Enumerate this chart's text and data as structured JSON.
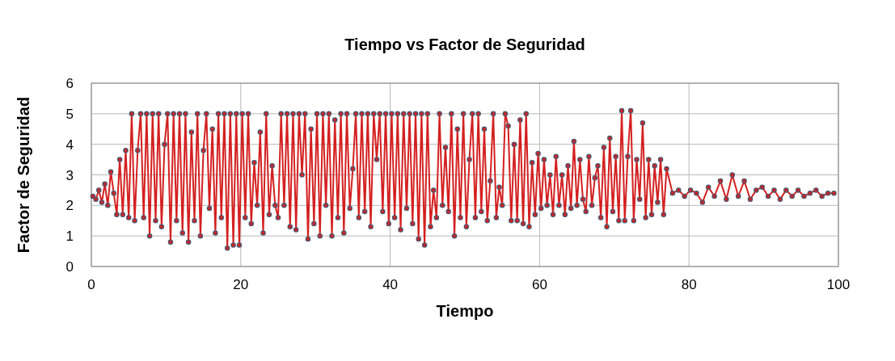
{
  "chart_data": {
    "type": "line",
    "title": "Tiempo vs Factor de Seguridad",
    "xlabel": "Tiempo",
    "ylabel": "Factor de Seguridad",
    "xlim": [
      0,
      100
    ],
    "xticks": [
      0,
      20,
      40,
      60,
      80,
      100
    ],
    "ylim": [
      0,
      6
    ],
    "yticks": [
      0,
      1,
      2,
      3,
      4,
      5,
      6
    ],
    "grid": true,
    "marker": "circle",
    "line_style": "solid",
    "x": [
      0.2,
      0.6,
      1.0,
      1.4,
      1.8,
      2.2,
      2.6,
      3.0,
      3.4,
      3.8,
      4.2,
      4.6,
      5.0,
      5.4,
      5.8,
      6.2,
      6.6,
      7.0,
      7.4,
      7.8,
      8.2,
      8.6,
      9.0,
      9.4,
      9.8,
      10.2,
      10.6,
      11.0,
      11.4,
      11.8,
      12.2,
      12.6,
      13.0,
      13.4,
      13.8,
      14.2,
      14.6,
      15.0,
      15.4,
      15.8,
      16.2,
      16.6,
      17.0,
      17.4,
      17.8,
      18.2,
      18.6,
      19.0,
      19.4,
      19.8,
      20.2,
      20.6,
      21.0,
      21.4,
      21.8,
      22.2,
      22.6,
      23.0,
      23.4,
      23.8,
      24.2,
      24.6,
      25.0,
      25.4,
      25.8,
      26.2,
      26.6,
      27.0,
      27.4,
      27.8,
      28.2,
      28.6,
      29.0,
      29.4,
      29.8,
      30.2,
      30.6,
      31.0,
      31.4,
      31.8,
      32.2,
      32.6,
      33.0,
      33.4,
      33.8,
      34.2,
      34.6,
      35.0,
      35.4,
      35.8,
      36.2,
      36.6,
      37.0,
      37.4,
      37.8,
      38.2,
      38.6,
      39.0,
      39.4,
      39.8,
      40.2,
      40.6,
      41.0,
      41.4,
      41.8,
      42.2,
      42.6,
      43.0,
      43.4,
      43.8,
      44.2,
      44.6,
      45.0,
      45.4,
      45.8,
      46.2,
      46.6,
      47.0,
      47.4,
      47.8,
      48.2,
      48.6,
      49.0,
      49.4,
      49.8,
      50.2,
      50.6,
      51.0,
      51.4,
      51.8,
      52.2,
      52.6,
      53.0,
      53.4,
      53.8,
      54.2,
      54.6,
      55.0,
      55.4,
      55.8,
      56.2,
      56.6,
      57.0,
      57.4,
      57.8,
      58.2,
      58.6,
      59.0,
      59.4,
      59.8,
      60.2,
      60.6,
      61.0,
      61.4,
      61.8,
      62.2,
      62.6,
      63.0,
      63.4,
      63.8,
      64.2,
      64.6,
      65.0,
      65.4,
      65.8,
      66.2,
      66.6,
      67.0,
      67.4,
      67.8,
      68.2,
      68.6,
      69.0,
      69.4,
      69.8,
      70.2,
      70.6,
      71.0,
      71.4,
      71.8,
      72.2,
      72.6,
      73.0,
      73.4,
      73.8,
      74.2,
      74.6,
      75.0,
      75.4,
      75.8,
      76.2,
      76.6,
      77.0,
      77.8,
      78.6,
      79.4,
      80.2,
      81.0,
      81.8,
      82.6,
      83.4,
      84.2,
      85.0,
      85.8,
      86.6,
      87.4,
      88.2,
      89.0,
      89.8,
      90.6,
      91.4,
      92.2,
      93.0,
      93.8,
      94.6,
      95.4,
      96.2,
      97.0,
      97.8,
      98.6,
      99.4
    ],
    "series": [
      {
        "color": "#d42020",
        "values": [
          2.3,
          2.2,
          2.5,
          2.1,
          2.7,
          2.0,
          3.1,
          2.4,
          1.7,
          3.5,
          1.7,
          3.8,
          1.6,
          5.0,
          1.5,
          3.8,
          5.0,
          1.6,
          5.0,
          1.0,
          5.0,
          1.5,
          5.0,
          1.3,
          4.0,
          5.0,
          0.8,
          5.0,
          1.5,
          5.0,
          1.1,
          5.0,
          0.8,
          4.4,
          1.5,
          5.0,
          1.0,
          3.8,
          5.0,
          1.9,
          4.5,
          1.1,
          5.0,
          1.6,
          5.0,
          0.6,
          5.0,
          0.7,
          5.0,
          0.7,
          5.0,
          1.6,
          5.0,
          1.4,
          3.4,
          2.0,
          4.4,
          1.1,
          5.0,
          1.7,
          3.3,
          2.0,
          1.6,
          5.0,
          2.0,
          5.0,
          1.3,
          5.0,
          1.2,
          5.0,
          3.0,
          5.0,
          0.9,
          4.5,
          1.4,
          5.0,
          1.0,
          5.0,
          2.0,
          5.0,
          1.0,
          4.8,
          1.6,
          5.0,
          1.1,
          5.0,
          1.9,
          3.2,
          5.0,
          1.6,
          5.0,
          1.8,
          5.0,
          1.3,
          5.0,
          3.5,
          5.0,
          1.8,
          5.0,
          1.4,
          5.0,
          1.6,
          5.0,
          1.2,
          5.0,
          1.9,
          5.0,
          1.4,
          5.0,
          0.9,
          5.0,
          0.7,
          5.0,
          1.3,
          2.5,
          1.6,
          5.0,
          2.0,
          3.9,
          1.8,
          5.0,
          1.0,
          4.5,
          1.6,
          5.0,
          1.3,
          3.5,
          5.0,
          1.6,
          5.0,
          1.8,
          4.5,
          1.5,
          2.8,
          5.0,
          1.6,
          2.6,
          2.0,
          5.0,
          4.6,
          1.5,
          4.0,
          1.5,
          4.8,
          1.4,
          5.0,
          1.3,
          3.4,
          1.7,
          3.7,
          1.9,
          3.5,
          2.0,
          3.0,
          1.7,
          3.6,
          2.0,
          3.0,
          1.7,
          3.3,
          1.9,
          4.1,
          2.0,
          3.5,
          2.2,
          1.8,
          3.6,
          2.0,
          2.9,
          3.3,
          1.6,
          3.9,
          1.3,
          4.2,
          1.8,
          3.6,
          1.5,
          5.1,
          1.5,
          3.6,
          5.1,
          1.5,
          3.5,
          2.2,
          4.7,
          1.6,
          3.5,
          1.7,
          3.3,
          2.1,
          3.5,
          1.7,
          3.2,
          2.4,
          2.5,
          2.3,
          2.5,
          2.4,
          2.1,
          2.6,
          2.3,
          2.8,
          2.2,
          3.0,
          2.3,
          2.8,
          2.2,
          2.5,
          2.6,
          2.3,
          2.5,
          2.2,
          2.5,
          2.3,
          2.5,
          2.3,
          2.4,
          2.5,
          2.3,
          2.4,
          2.4
        ]
      }
    ]
  }
}
